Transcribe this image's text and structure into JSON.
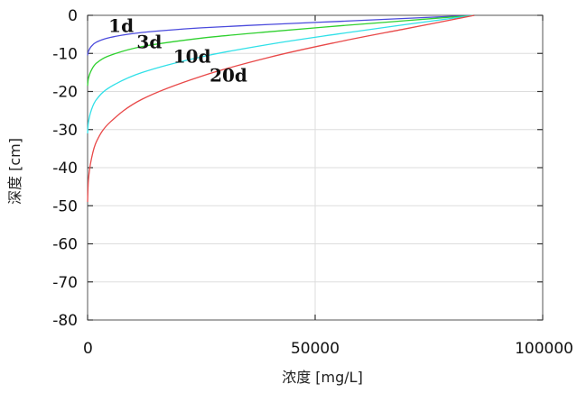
{
  "chart_data": {
    "type": "line",
    "xlabel": "浓度 [mg/L]",
    "ylabel": "深度 [cm]",
    "xlim": [
      0,
      100000
    ],
    "ylim": [
      -80,
      0
    ],
    "xticks": [
      0,
      50000,
      100000
    ],
    "xtick_labels": [
      "0",
      "50000",
      "100000"
    ],
    "yticks": [
      0,
      -10,
      -20,
      -30,
      -40,
      -50,
      -60,
      -70,
      -80
    ],
    "ytick_labels": [
      "0",
      "-10",
      "-20",
      "-30",
      "-40",
      "-50",
      "-60",
      "-70",
      "-80"
    ],
    "grid": true,
    "legend": "none",
    "series": [
      {
        "name": "1d",
        "color": "#4a4adc",
        "x": [
          85000,
          70000,
          55000,
          40000,
          25000,
          12000,
          5000,
          2000,
          800,
          200,
          0
        ],
        "y": [
          0,
          -0.8,
          -1.6,
          -2.4,
          -3.3,
          -4.5,
          -5.8,
          -7.0,
          -8.2,
          -9.4,
          -10.5
        ]
      },
      {
        "name": "3d",
        "color": "#2ed02e",
        "x": [
          85000,
          70000,
          55000,
          40000,
          25000,
          12000,
          5000,
          2000,
          800,
          200,
          0
        ],
        "y": [
          0,
          -1.4,
          -2.8,
          -4.3,
          -6.0,
          -8.2,
          -10.5,
          -12.5,
          -14.5,
          -16.5,
          -18.5
        ]
      },
      {
        "name": "10d",
        "color": "#30e0e8",
        "x": [
          85000,
          70000,
          55000,
          40000,
          25000,
          12000,
          5000,
          2000,
          800,
          200,
          0
        ],
        "y": [
          0,
          -2.4,
          -4.9,
          -7.6,
          -10.9,
          -15.0,
          -18.8,
          -22.0,
          -25.0,
          -28.0,
          -31.0
        ]
      },
      {
        "name": "20d",
        "color": "#e84848",
        "x": [
          85000,
          70000,
          55000,
          40000,
          25000,
          12000,
          5000,
          2000,
          800,
          200,
          0
        ],
        "y": [
          0,
          -3.5,
          -7.0,
          -11.0,
          -16.0,
          -22.0,
          -28.0,
          -33.0,
          -38.0,
          -43.0,
          -49.0
        ]
      }
    ],
    "annotations": [
      {
        "text": "1d",
        "x": 4600,
        "y": -4.4
      },
      {
        "text": "3d",
        "x": 10800,
        "y": -8.6
      },
      {
        "text": "10d",
        "x": 18800,
        "y": -12.4
      },
      {
        "text": "20d",
        "x": 26800,
        "y": -17.4
      }
    ]
  }
}
